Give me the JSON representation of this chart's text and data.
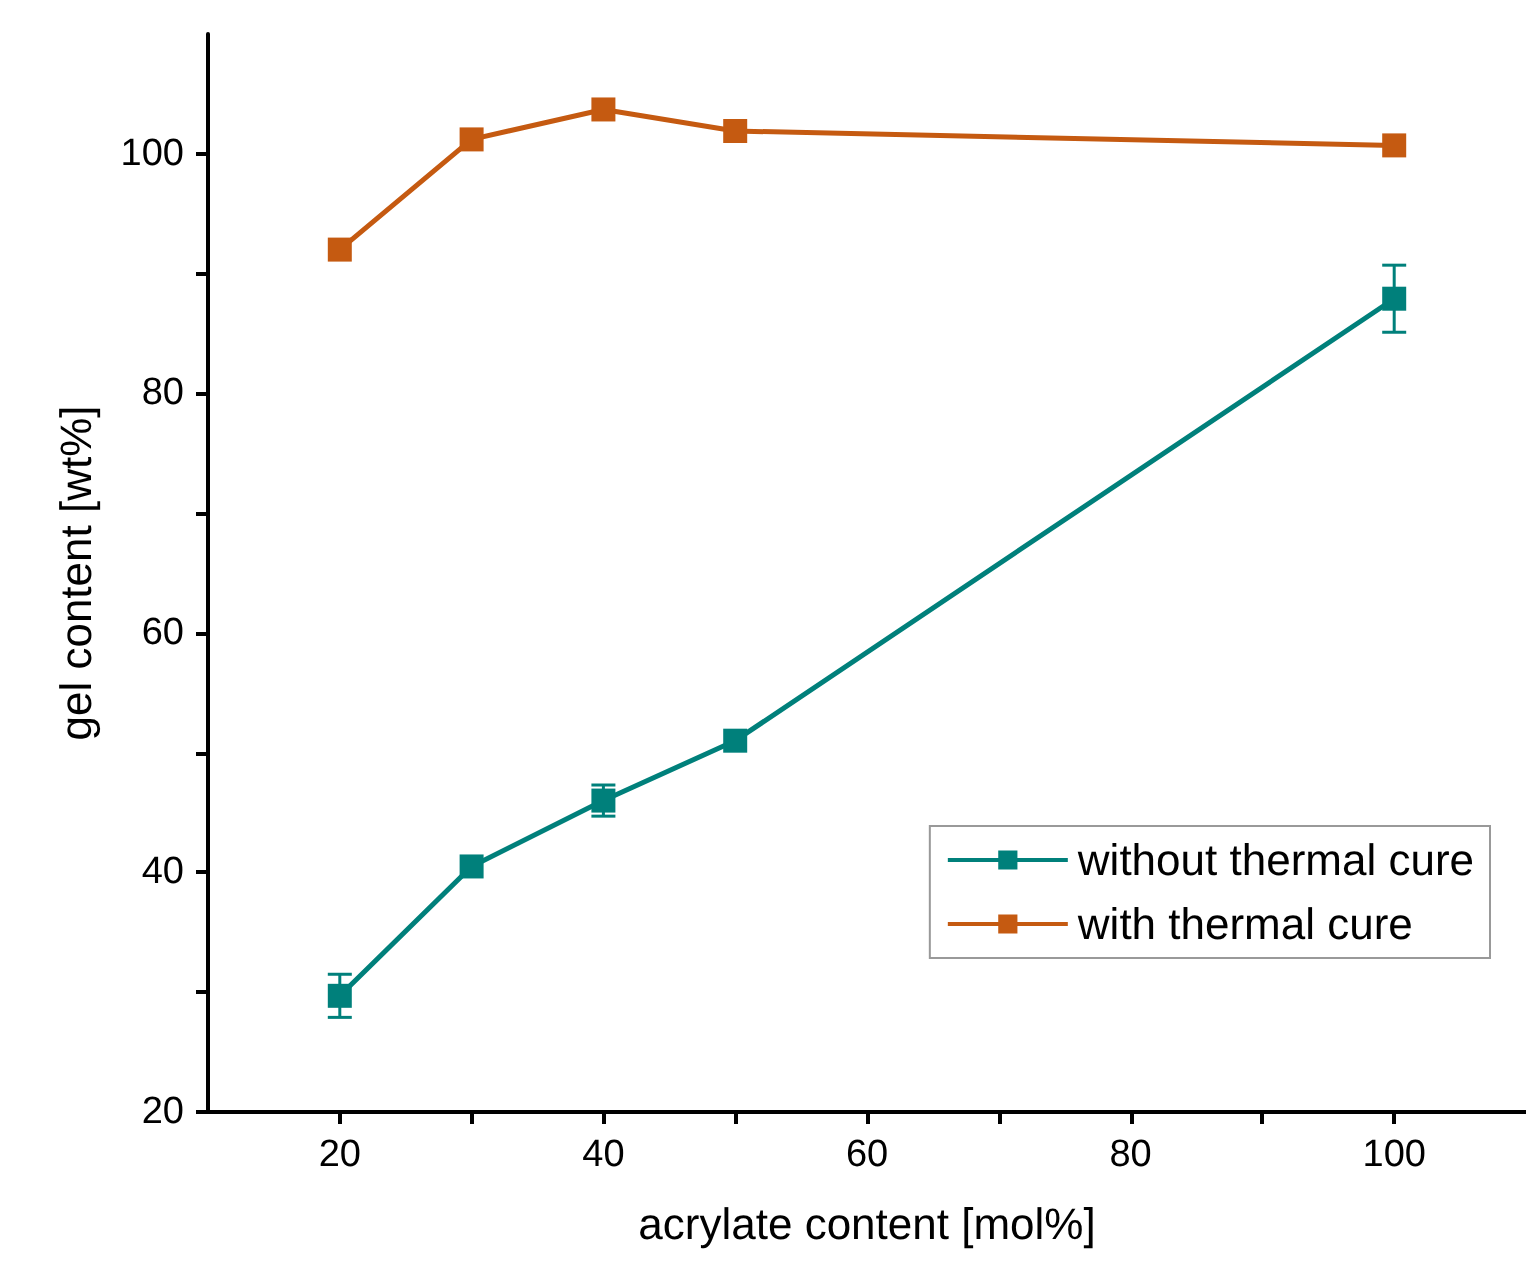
{
  "chart_data": {
    "type": "line",
    "xlabel": "acrylate content [mol%]",
    "ylabel": "gel content [wt%]",
    "x": [
      20,
      30,
      40,
      50,
      100
    ],
    "series": [
      {
        "name": "without thermal cure",
        "color": "#00807b",
        "values": [
          29.7,
          40.5,
          46,
          51,
          87.9
        ],
        "errors": [
          1.8,
          null,
          1.3,
          null,
          2.8
        ]
      },
      {
        "name": "with thermal cure",
        "color": "#c55a11",
        "values": [
          92,
          101.2,
          103.7,
          101.9,
          100.7
        ]
      }
    ],
    "xlim": [
      10,
      110
    ],
    "xticks": [
      20,
      {
        "value": 30,
        "label": null
      },
      40,
      {
        "value": 50,
        "label": null
      },
      60,
      {
        "value": 70,
        "label": null
      },
      80,
      {
        "value": 90,
        "label": null
      },
      100
    ],
    "ylim": [
      20,
      110
    ],
    "yticks": [
      20,
      {
        "value": 30,
        "label": null
      },
      40,
      {
        "value": 50,
        "label": null
      },
      60,
      {
        "value": 70,
        "label": null
      },
      80,
      {
        "value": 90,
        "label": null
      },
      100
    ],
    "grid": false,
    "legend": "bottom right",
    "marker": "square",
    "line_style": "solid"
  }
}
